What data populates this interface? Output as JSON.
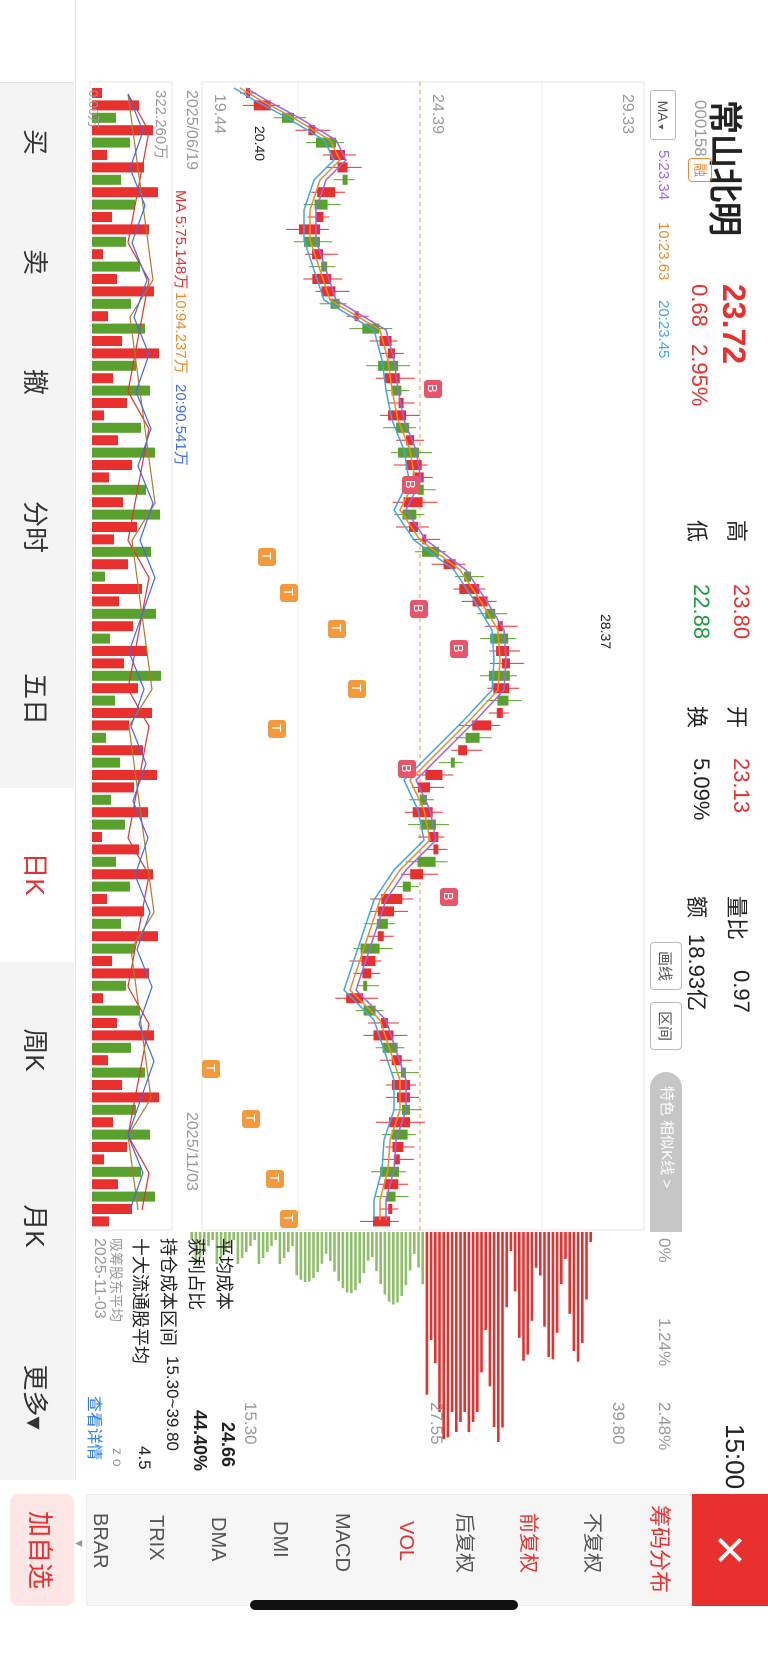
{
  "stock": {
    "name": "常山北明",
    "code": "000158",
    "margin_badge": "融",
    "price": "23.72",
    "change": "0.68",
    "change_pct": "2.95%",
    "time": "15:00"
  },
  "stats": {
    "high_label": "高",
    "high": "23.80",
    "open_label": "开",
    "open": "23.13",
    "vol_ratio_label": "量比",
    "vol_ratio": "0.97",
    "low_label": "低",
    "low": "22.88",
    "turnover_label": "换",
    "turnover": "5.09%",
    "amount_label": "额",
    "amount": "18.93亿"
  },
  "chart_toolbar": {
    "ma_select": "MA",
    "ma5": "5:23.34",
    "ma10": "10:23.63",
    "ma20": "20:23.45",
    "draw_btn": "画线",
    "range_btn": "区间",
    "feature_btn": "特色 相似K线 >"
  },
  "price_axis": {
    "top": "29.33",
    "mid": "24.39",
    "bottom": "19.44"
  },
  "price_labels": {
    "low_marker": "20.40",
    "high_marker": "28.37",
    "up": "8",
    "down": "9"
  },
  "dates": {
    "start": "2025/06/19",
    "end": "2025/11/03"
  },
  "volume": {
    "scale": "322.260万",
    "ma5": "MA 5:75.148万",
    "ma10": "10:94.237万",
    "ma20": "20:90.541万",
    "zero": "0.00万"
  },
  "chip": {
    "pct_axis": [
      "0%",
      "1.24%",
      "2.48%"
    ],
    "price_axis": [
      "39.80",
      "27.55",
      "15.30"
    ],
    "avg_cost_label": "平均成本",
    "avg_cost": "24.66",
    "profit_label": "获利占比",
    "profit": "44.40%",
    "range_label": "持仓成本区间",
    "range": "15.30~39.80",
    "top10_label": "十大流通股平均",
    "top10": "4.5",
    "extra_label": "吸筹股东平均",
    "extra": "z o",
    "date": "2025-11-03",
    "detail_link": "查看详情"
  },
  "side_tabs": [
    "买",
    "卖",
    "撤",
    "分时",
    "五日",
    "日K",
    "周K",
    "月K",
    "更多▾"
  ],
  "right_panel": {
    "close": "×",
    "title": "筹码分布",
    "items": [
      "不复权",
      "前复权",
      "后复权",
      "VOL",
      "MACD",
      "DMI",
      "DMA",
      "TRIX",
      "BRAR"
    ],
    "add_watch": "加自选"
  },
  "colors": {
    "up": "#e8302f",
    "down": "#5aa02c",
    "ma5": "#9966ee",
    "ma10": "#ef8a2c",
    "ma20": "#3ea6ee",
    "orange": "#f39a3c"
  }
}
